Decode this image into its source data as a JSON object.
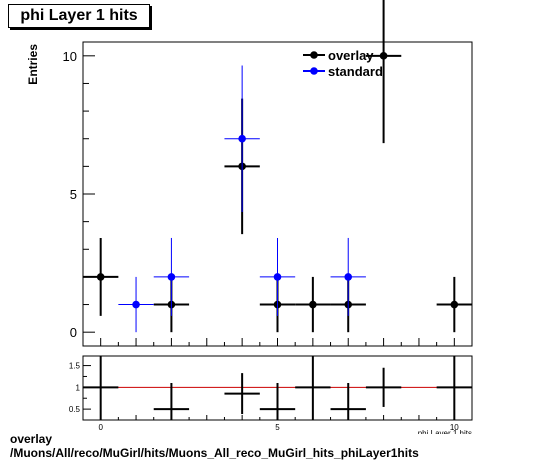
{
  "title": "phi Layer 1 hits",
  "caption_line1": "overlay",
  "caption_line2": "/Muons/All/reco/MuGirl/hits/Muons_All_reco_MuGirl_hits_phiLayer1hits",
  "chart_data": [
    {
      "type": "scatter",
      "ylabel": "Entries",
      "xlabel": "phi Layer 1 hits",
      "xlim": [
        -0.5,
        10.5
      ],
      "ylim": [
        -0.5,
        10.5
      ],
      "x_ticks": [
        0,
        5,
        10
      ],
      "y_ticks": [
        0,
        5,
        10
      ],
      "legend_position": "top-right",
      "grid": false,
      "series": [
        {
          "name": "overlay",
          "color": "#000000",
          "x": [
            0,
            2,
            4,
            5,
            6,
            7,
            8,
            10
          ],
          "y": [
            2,
            1,
            6,
            1,
            1,
            1,
            10,
            1
          ],
          "yerr": [
            1.41,
            1.0,
            2.45,
            1.0,
            1.0,
            1.0,
            3.16,
            1.0
          ]
        },
        {
          "name": "standard",
          "color": "#0000ff",
          "x": [
            1,
            2,
            4,
            5,
            7
          ],
          "y": [
            1,
            2,
            7,
            2,
            2
          ],
          "yerr": [
            1.0,
            1.41,
            2.65,
            1.41,
            1.41
          ]
        }
      ]
    },
    {
      "type": "scatter",
      "xlim": [
        -0.5,
        10.5
      ],
      "ylim": [
        0.25,
        1.72
      ],
      "x_ticks": [
        0,
        5,
        10
      ],
      "y_ticks": [
        0.5,
        1,
        1.5
      ],
      "reference_line": 1,
      "reference_color": "#cc0000",
      "grid": false,
      "series": [
        {
          "color": "#000000",
          "x": [
            0,
            2,
            4,
            5,
            6,
            7,
            8,
            10
          ],
          "y": [
            1,
            0.5,
            0.857,
            0.5,
            1,
            0.5,
            1,
            1
          ],
          "yerr": [
            0.8,
            0.6,
            0.47,
            0.6,
            1.0,
            0.6,
            0.45,
            1.0
          ]
        }
      ]
    }
  ]
}
